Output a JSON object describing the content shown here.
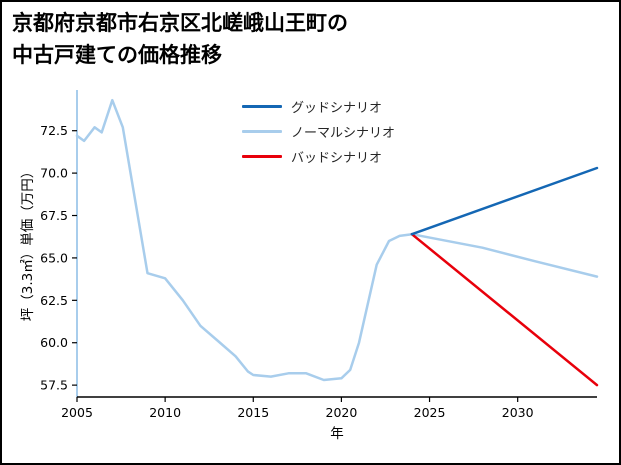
{
  "title": {
    "line1": "京都府京都市右京区北嵯峨山王町の",
    "line2": "中古戸建ての価格推移"
  },
  "chart_data": {
    "type": "line",
    "title": "京都府京都市右京区北嵯峨山王町の中古戸建ての価格推移",
    "xlabel": "年",
    "ylabel": "坪（3.3㎡）単価（万円）",
    "xlim": [
      2005,
      2034.5
    ],
    "ylim": [
      56.8,
      74.9
    ],
    "xticks": [
      2005,
      2010,
      2015,
      2020,
      2025,
      2030
    ],
    "xtick_labels": [
      "2005",
      "2010",
      "2015",
      "2020",
      "2025",
      "2030"
    ],
    "yticks": [
      57.5,
      60.0,
      62.5,
      65.0,
      67.5,
      70.0,
      72.5
    ],
    "ytick_labels": [
      "57.5",
      "60.0",
      "62.5",
      "65.0",
      "67.5",
      "70.0",
      "72.5"
    ],
    "grid": false,
    "legend_position": "upper center",
    "axis_colors": {
      "left_spine": "#a8cdec",
      "bottom_spine": "#000000",
      "tick": "#000000"
    },
    "legend": [
      {
        "label": "グッドシナリオ",
        "color": "#1467b4"
      },
      {
        "label": "ノーマルシナリオ",
        "color": "#a8cdec"
      },
      {
        "label": "バッドシナリオ",
        "color": "#e8000b"
      }
    ],
    "series": [
      {
        "id": "historical",
        "color": "#a8cdec",
        "points": [
          [
            2005,
            72.2
          ],
          [
            2005.4,
            71.9
          ],
          [
            2006,
            72.7
          ],
          [
            2006.4,
            72.4
          ],
          [
            2007,
            74.3
          ],
          [
            2007.6,
            72.7
          ],
          [
            2009,
            64.1
          ],
          [
            2010,
            63.8
          ],
          [
            2011,
            62.5
          ],
          [
            2012,
            61.0
          ],
          [
            2013,
            60.1
          ],
          [
            2014,
            59.2
          ],
          [
            2014.7,
            58.3
          ],
          [
            2015,
            58.1
          ],
          [
            2016,
            58.0
          ],
          [
            2017,
            58.2
          ],
          [
            2018,
            58.2
          ],
          [
            2019,
            57.8
          ],
          [
            2020,
            57.9
          ],
          [
            2020.5,
            58.4
          ],
          [
            2021,
            60.0
          ],
          [
            2022,
            64.6
          ],
          [
            2022.7,
            66.0
          ],
          [
            2023.3,
            66.3
          ],
          [
            2024,
            66.4
          ]
        ]
      },
      {
        "id": "normal-scenario",
        "color": "#a8cdec",
        "points": [
          [
            2024,
            66.4
          ],
          [
            2028,
            65.6
          ],
          [
            2031,
            64.8
          ],
          [
            2034.5,
            63.9
          ]
        ]
      },
      {
        "id": "bad-scenario",
        "color": "#e8000b",
        "points": [
          [
            2024,
            66.4
          ],
          [
            2034.5,
            57.5
          ]
        ]
      },
      {
        "id": "good-scenario",
        "color": "#1467b4",
        "points": [
          [
            2024,
            66.4
          ],
          [
            2034.5,
            70.3
          ]
        ]
      }
    ]
  }
}
